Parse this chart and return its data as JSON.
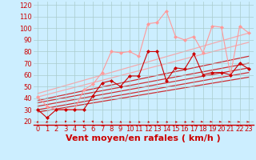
{
  "xlabel": "Vent moyen/en rafales ( km/h )",
  "bg_color": "#cceeff",
  "grid_color": "#aacccc",
  "xlim": [
    -0.5,
    23.5
  ],
  "ylim": [
    17,
    123
  ],
  "yticks": [
    20,
    30,
    40,
    50,
    60,
    70,
    80,
    90,
    100,
    110,
    120
  ],
  "xticks": [
    0,
    1,
    2,
    3,
    4,
    5,
    6,
    7,
    8,
    9,
    10,
    11,
    12,
    13,
    14,
    15,
    16,
    17,
    18,
    19,
    20,
    21,
    22,
    23
  ],
  "line_dark_x": [
    0,
    1,
    2,
    3,
    4,
    5,
    6,
    7,
    8,
    9,
    10,
    11,
    12,
    13,
    14,
    15,
    16,
    17,
    18,
    19,
    20,
    21,
    22,
    23
  ],
  "line_dark_y": [
    30,
    23,
    30,
    30,
    30,
    30,
    42,
    53,
    55,
    50,
    59,
    59,
    80,
    80,
    55,
    66,
    65,
    78,
    60,
    62,
    62,
    60,
    70,
    65
  ],
  "line_light_x": [
    0,
    1,
    2,
    3,
    4,
    5,
    6,
    7,
    8,
    9,
    10,
    11,
    12,
    13,
    14,
    15,
    16,
    17,
    18,
    19,
    20,
    21,
    22,
    23
  ],
  "line_light_y": [
    41,
    33,
    30,
    30,
    30,
    47,
    52,
    62,
    80,
    79,
    80,
    76,
    104,
    105,
    115,
    93,
    90,
    93,
    79,
    102,
    101,
    60,
    102,
    96
  ],
  "dark_color": "#cc0000",
  "light_color": "#ff9999",
  "trend_lines": [
    {
      "x": [
        0,
        23
      ],
      "y": [
        28,
        58
      ],
      "color": "#cc0000"
    },
    {
      "x": [
        0,
        23
      ],
      "y": [
        30,
        62
      ],
      "color": "#cc0000"
    },
    {
      "x": [
        0,
        23
      ],
      "y": [
        33,
        66
      ],
      "color": "#cc0000"
    },
    {
      "x": [
        0,
        23
      ],
      "y": [
        36,
        70
      ],
      "color": "#cc0000"
    },
    {
      "x": [
        0,
        23
      ],
      "y": [
        38,
        76
      ],
      "color": "#cc0000"
    },
    {
      "x": [
        0,
        23
      ],
      "y": [
        41,
        88
      ],
      "color": "#ff9999"
    },
    {
      "x": [
        0,
        23
      ],
      "y": [
        44,
        96
      ],
      "color": "#ff9999"
    }
  ],
  "text_color": "#cc0000",
  "tick_fontsize": 6,
  "xlabel_fontsize": 8
}
